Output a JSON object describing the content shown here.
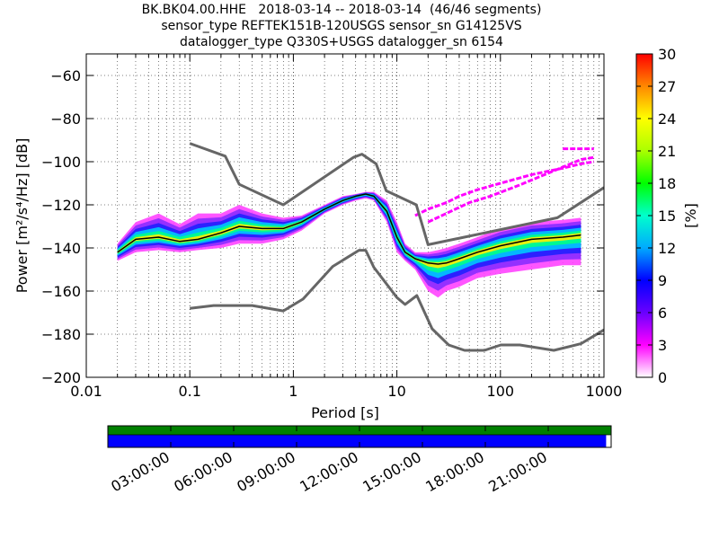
{
  "title_lines": [
    "BK.BK04.00.HHE   2018-03-14 -- 2018-03-14  (46/46 segments)",
    "sensor_type REFTEK151B-120USGS sensor_sn G14125VS",
    "datalogger_type Q330S+USGS datalogger_sn 6154"
  ],
  "chart_data": {
    "type": "heatmap",
    "xlabel": "Period [s]",
    "ylabel": "Power [m²/s⁴/Hz] [dB]",
    "xscale": "log",
    "xlim": [
      0.01,
      1000
    ],
    "ylim": [
      -200,
      -50
    ],
    "xticks": [
      0.01,
      0.1,
      1,
      10,
      100,
      1000
    ],
    "xtick_labels": [
      "0.01",
      "0.1",
      "1",
      "10",
      "100",
      "1000"
    ],
    "yticks": [
      -200,
      -180,
      -160,
      -140,
      -120,
      -100,
      -80,
      -60
    ],
    "ytick_labels": [
      "−200",
      "−180",
      "−160",
      "−140",
      "−120",
      "−100",
      "−80",
      "−60"
    ],
    "grid": true,
    "colorbar": {
      "label": "[%]",
      "range": [
        0,
        30
      ],
      "ticks": [
        "0",
        "3",
        "6",
        "9",
        "12",
        "15",
        "18",
        "21",
        "24",
        "27",
        "30"
      ]
    },
    "noise_models": {
      "high": {
        "x": [
          0.1,
          0.22,
          0.3,
          0.8,
          3.8,
          4.6,
          6.3,
          7.9,
          15.4,
          20,
          354.8,
          1000
        ],
        "y": [
          -91.5,
          -97.4,
          -110.5,
          -120,
          -98,
          -96.5,
          -101,
          -113.5,
          -120,
          -138.5,
          -126,
          -112
        ]
      },
      "low": {
        "x": [
          0.1,
          0.17,
          0.4,
          0.8,
          1.24,
          2.4,
          4.3,
          5,
          6,
          10,
          12,
          15.6,
          21.9,
          31.6,
          45,
          70,
          101,
          154,
          328,
          600,
          1000
        ],
        "y": [
          -168,
          -166.7,
          -166.7,
          -169.2,
          -163.7,
          -148.6,
          -141.1,
          -141.1,
          -149,
          -163,
          -166.2,
          -162.1,
          -177.5,
          -185,
          -187.5,
          -187.5,
          -185,
          -185,
          -187.5,
          -184.4,
          -178
        ]
      }
    },
    "mean_psd": {
      "x": [
        0.02,
        0.03,
        0.05,
        0.08,
        0.12,
        0.2,
        0.3,
        0.5,
        0.8,
        1.2,
        2,
        3,
        4,
        5,
        6,
        8,
        10,
        12,
        15,
        20,
        25,
        30,
        40,
        60,
        100,
        200,
        400,
        600
      ],
      "y": [
        -142,
        -136,
        -135,
        -137,
        -136,
        -133,
        -130,
        -131,
        -131,
        -128,
        -122,
        -118,
        -116,
        -115,
        -116,
        -123,
        -135,
        -142,
        -145,
        -147,
        -147.5,
        -147,
        -145,
        -142,
        -139,
        -136,
        -135,
        -134
      ]
    },
    "psd_envelope": {
      "x": [
        0.02,
        0.03,
        0.05,
        0.08,
        0.12,
        0.2,
        0.3,
        0.5,
        0.8,
        1.2,
        2,
        3,
        4,
        5,
        6,
        8,
        10,
        12,
        15,
        20,
        25,
        30,
        40,
        60,
        100,
        200,
        400,
        600
      ],
      "upper": [
        -138,
        -128,
        -124,
        -129,
        -124,
        -124,
        -120,
        -124,
        -126,
        -125,
        -120,
        -116,
        -115,
        -114,
        -114,
        -118,
        -128,
        -138,
        -142,
        -142,
        -141,
        -140,
        -138,
        -135,
        -131,
        -128,
        -127,
        -126
      ],
      "lower": [
        -146,
        -142,
        -141,
        -142,
        -141,
        -140,
        -138,
        -138,
        -136,
        -132,
        -124,
        -120,
        -118,
        -117,
        -118,
        -128,
        -142,
        -146,
        -150,
        -160,
        -163,
        -160,
        -158,
        -154,
        -152,
        -150,
        -148,
        -148
      ]
    },
    "outlier_traces": [
      {
        "x": [
          15,
          20,
          30,
          40,
          60,
          100,
          200,
          400,
          600,
          800
        ],
        "y": [
          -125,
          -122,
          -119,
          -116,
          -113,
          -110,
          -106,
          -103,
          -101,
          -100
        ]
      },
      {
        "x": [
          20,
          30,
          50,
          80,
          150,
          300,
          600,
          800
        ],
        "y": [
          -128,
          -124,
          -119,
          -116,
          -111,
          -105,
          -99,
          -98
        ]
      },
      {
        "x": [
          400,
          600,
          800
        ],
        "y": [
          -94,
          -94,
          -94
        ]
      }
    ],
    "data_availability": {
      "time_ticks": [
        "03:00:00",
        "06:00:00",
        "09:00:00",
        "12:00:00",
        "15:00:00",
        "18:00:00",
        "21:00:00"
      ],
      "data_coverage": 0.99,
      "psd_coverage": 1.0,
      "data_color": "#0000ff",
      "psd_color": "#008000"
    }
  }
}
